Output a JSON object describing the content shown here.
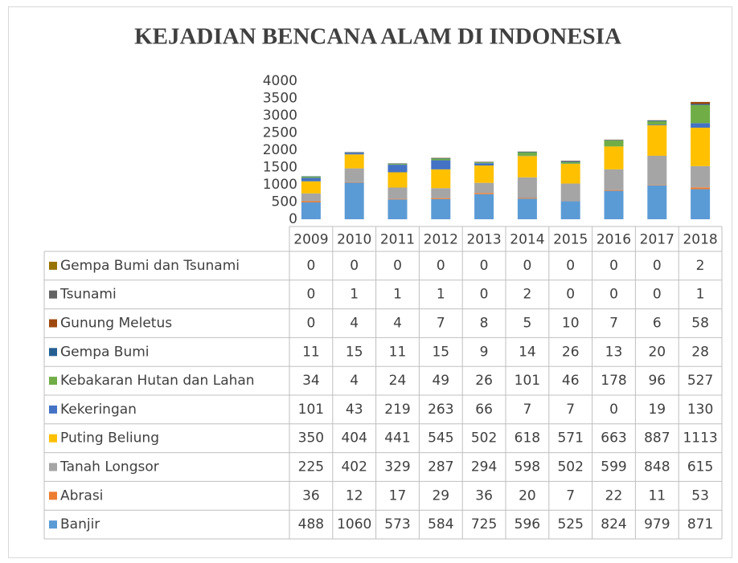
{
  "chart_data": {
    "type": "bar",
    "stacked": true,
    "title": "KEJADIAN BENCANA ALAM DI INDONESIA",
    "categories": [
      "2009",
      "2010",
      "2011",
      "2012",
      "2013",
      "2014",
      "2015",
      "2016",
      "2017",
      "2018"
    ],
    "ylim": [
      0,
      4000
    ],
    "yticks": [
      0,
      500,
      1000,
      1500,
      2000,
      2500,
      3000,
      3500,
      4000
    ],
    "grid": false,
    "series": [
      {
        "name": "Banjir",
        "color": "#5b9bd5",
        "values": [
          488,
          1060,
          573,
          584,
          725,
          596,
          525,
          824,
          979,
          871
        ]
      },
      {
        "name": "Abrasi",
        "color": "#ed7d31",
        "values": [
          36,
          12,
          17,
          29,
          36,
          20,
          7,
          22,
          11,
          53
        ]
      },
      {
        "name": "Tanah Longsor",
        "color": "#a5a5a5",
        "values": [
          225,
          402,
          329,
          287,
          294,
          598,
          502,
          599,
          848,
          615
        ]
      },
      {
        "name": "Puting Beliung",
        "color": "#ffc000",
        "values": [
          350,
          404,
          441,
          545,
          502,
          618,
          571,
          663,
          887,
          1113
        ]
      },
      {
        "name": "Kekeringan",
        "color": "#4472c4",
        "values": [
          101,
          43,
          219,
          263,
          66,
          7,
          7,
          0,
          19,
          130
        ]
      },
      {
        "name": "Kebakaran Hutan dan Lahan",
        "color": "#70ad47",
        "values": [
          34,
          4,
          24,
          49,
          26,
          101,
          46,
          178,
          96,
          527
        ]
      },
      {
        "name": "Gempa Bumi",
        "color": "#255e91",
        "values": [
          11,
          15,
          11,
          15,
          9,
          14,
          26,
          13,
          20,
          28
        ]
      },
      {
        "name": "Gunung Meletus",
        "color": "#9e480e",
        "values": [
          0,
          4,
          4,
          7,
          8,
          5,
          10,
          7,
          6,
          58
        ]
      },
      {
        "name": "Tsunami",
        "color": "#636363",
        "values": [
          0,
          1,
          1,
          1,
          0,
          2,
          0,
          0,
          0,
          1
        ]
      },
      {
        "name": "Gempa Bumi dan Tsunami",
        "color": "#997300",
        "values": [
          0,
          0,
          0,
          0,
          0,
          0,
          0,
          0,
          0,
          2
        ]
      }
    ]
  }
}
